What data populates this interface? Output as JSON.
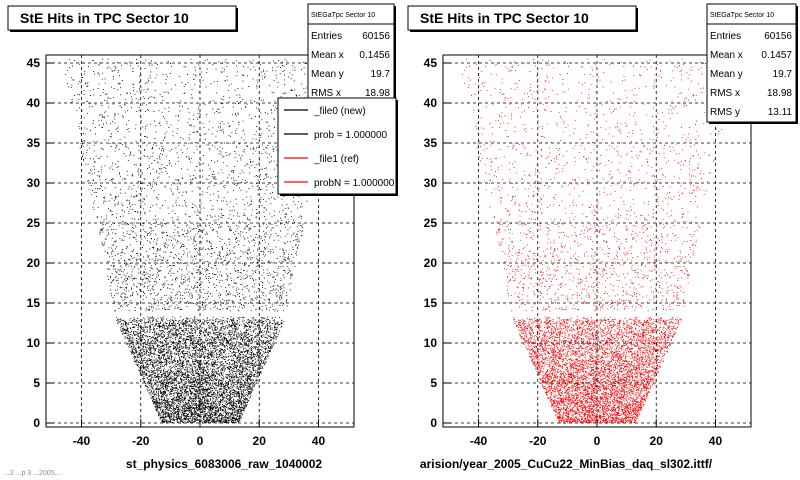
{
  "chart_data": [
    {
      "type": "scatter",
      "title": "StE Hits in TPC Sector 10",
      "xlabel": "st_physics_6083006_raw_1040002",
      "ylabel": "",
      "xlim": [
        -52,
        52
      ],
      "ylim": [
        -0.5,
        46
      ],
      "xticks": [
        -40,
        -20,
        0,
        20,
        40
      ],
      "yticks": [
        0,
        5,
        10,
        15,
        20,
        25,
        30,
        35,
        40,
        45
      ],
      "grid": true,
      "marker_color": "#000000",
      "stats": {
        "name": "StEGaTpc Sector 10",
        "rows": [
          {
            "label": "Entries",
            "value": "60156"
          },
          {
            "label": "Mean x",
            "value": "0.1456"
          },
          {
            "label": "Mean y",
            "value": "19.7"
          },
          {
            "label": "RMS x",
            "value": "18.98"
          }
        ]
      },
      "legend": {
        "placement": "right",
        "entries": [
          {
            "label": "_file0 (new)",
            "color": "#000000"
          },
          {
            "label": "prob = 1.000000",
            "color": "#000000"
          },
          {
            "label": "_file1 (ref)",
            "color": "#ff0000"
          },
          {
            "label": "probN = 1.000000",
            "color": "#ff0000"
          }
        ]
      },
      "point_density": {
        "description": "trapezoidal TPC sector hit distribution",
        "x_half_width_at_y0": 13,
        "x_half_width_at_y45": 47,
        "gap_y": [
          13.3,
          14.0
        ]
      },
      "entries": 60156
    },
    {
      "type": "scatter",
      "title": "StE Hits in TPC Sector 10",
      "xlabel": "arision/year_2005_CuCu22_MinBias_daq_sl302.ittf/",
      "ylabel": "",
      "xlim": [
        -52,
        52
      ],
      "ylim": [
        -0.5,
        46
      ],
      "xticks": [
        -40,
        -20,
        0,
        20,
        40
      ],
      "yticks": [
        0,
        5,
        10,
        15,
        20,
        25,
        30,
        35,
        40,
        45
      ],
      "grid": true,
      "marker_color": "#ff0000",
      "stats": {
        "name": "StEGaTpc Sector 10",
        "rows": [
          {
            "label": "Entries",
            "value": "60156"
          },
          {
            "label": "Mean x",
            "value": "0.1457"
          },
          {
            "label": "Mean y",
            "value": "19.7"
          },
          {
            "label": "RMS x",
            "value": "18.98"
          },
          {
            "label": "RMS y",
            "value": "13.11"
          }
        ]
      },
      "point_density": {
        "description": "trapezoidal TPC sector hit distribution",
        "x_half_width_at_y0": 13,
        "x_half_width_at_y45": 47,
        "gap_y": [
          13.3,
          14.0
        ]
      },
      "entries": 60156
    }
  ],
  "footer_text": "...2 ...p 3 ...2005..."
}
